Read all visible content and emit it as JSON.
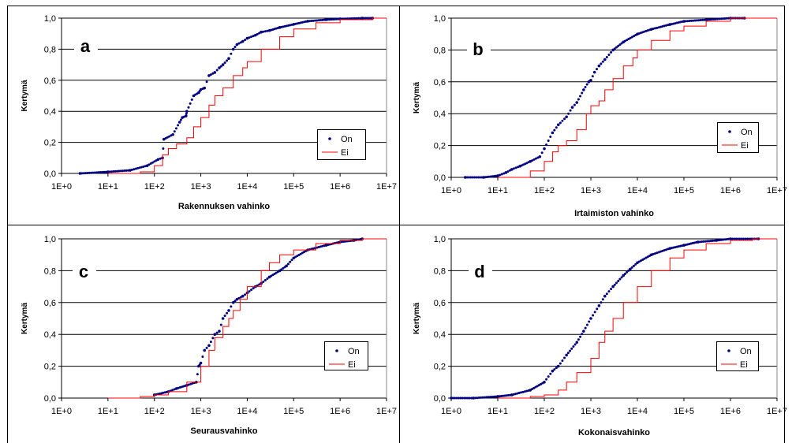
{
  "colors": {
    "on": "#000080",
    "ei": "#ff0000",
    "grid": "#000000"
  },
  "chart_data": [
    {
      "type": "line",
      "panel": "a",
      "xlabel": "Rakennuksen vahinko",
      "ylabel": "Kertymä",
      "xscale": "log",
      "xlim": [
        1,
        10000000
      ],
      "ylim": [
        0,
        1
      ],
      "xticks": [
        "1E+0",
        "1E+1",
        "1E+2",
        "1E+3",
        "1E+4",
        "1E+5",
        "1E+6",
        "1E+7"
      ],
      "yticks": [
        "0,0",
        "0,2",
        "0,4",
        "0,6",
        "0,8",
        "1,0"
      ],
      "grid": "horizontal",
      "legend": "right",
      "series": [
        {
          "name": "On",
          "style": "points",
          "x": [
            2.5,
            10,
            30,
            70,
            120,
            150,
            160,
            250,
            350,
            400,
            480,
            500,
            700,
            900,
            1000,
            1200,
            1500,
            2000,
            2500,
            3000,
            4000,
            5000,
            6000,
            8000,
            10000,
            15000,
            20000,
            30000,
            50000,
            100000,
            200000,
            500000,
            1000000,
            3000000,
            5000000
          ],
          "y": [
            0.0,
            0.01,
            0.02,
            0.05,
            0.09,
            0.1,
            0.22,
            0.25,
            0.33,
            0.36,
            0.37,
            0.4,
            0.5,
            0.52,
            0.54,
            0.55,
            0.63,
            0.65,
            0.68,
            0.7,
            0.74,
            0.8,
            0.83,
            0.85,
            0.87,
            0.89,
            0.91,
            0.92,
            0.94,
            0.96,
            0.98,
            0.99,
            0.995,
            1.0,
            1.0
          ]
        },
        {
          "name": "Ei",
          "style": "line",
          "x": [
            10,
            50,
            100,
            150,
            200,
            300,
            500,
            700,
            1000,
            1500,
            2000,
            3000,
            5000,
            8000,
            10000,
            20000,
            50000,
            100000,
            300000,
            1000000,
            5000000
          ],
          "y": [
            0.0,
            0.01,
            0.05,
            0.12,
            0.16,
            0.19,
            0.23,
            0.3,
            0.36,
            0.44,
            0.5,
            0.55,
            0.63,
            0.68,
            0.72,
            0.8,
            0.88,
            0.93,
            0.97,
            0.99,
            1.0
          ]
        }
      ]
    },
    {
      "type": "line",
      "panel": "b",
      "xlabel": "Irtaimiston vahinko",
      "ylabel": "Kertymä",
      "xscale": "log",
      "xlim": [
        1,
        10000000
      ],
      "ylim": [
        0,
        1
      ],
      "xticks": [
        "1E+0",
        "1E+1",
        "1E+2",
        "1E+3",
        "1E+4",
        "1E+5",
        "1E+6",
        "1E+7"
      ],
      "yticks": [
        "0,0",
        "0,2",
        "0,4",
        "0,6",
        "0,8",
        "1,0"
      ],
      "grid": "horizontal",
      "legend": "right",
      "series": [
        {
          "name": "On",
          "style": "points",
          "x": [
            2,
            5,
            10,
            15,
            20,
            30,
            50,
            80,
            100,
            150,
            200,
            300,
            400,
            500,
            700,
            900,
            1000,
            1200,
            1500,
            2000,
            3000,
            5000,
            10000,
            20000,
            50000,
            100000,
            300000,
            1000000,
            2000000
          ],
          "y": [
            0.0,
            0.0,
            0.01,
            0.03,
            0.05,
            0.07,
            0.1,
            0.13,
            0.18,
            0.28,
            0.33,
            0.38,
            0.44,
            0.47,
            0.55,
            0.6,
            0.61,
            0.66,
            0.7,
            0.74,
            0.8,
            0.85,
            0.9,
            0.93,
            0.96,
            0.98,
            0.99,
            1.0,
            1.0
          ]
        },
        {
          "name": "Ei",
          "style": "line",
          "x": [
            10,
            50,
            100,
            150,
            200,
            300,
            500,
            800,
            1000,
            1500,
            2000,
            3000,
            5000,
            8000,
            10000,
            20000,
            50000,
            100000,
            300000,
            1000000,
            3000000
          ],
          "y": [
            0.0,
            0.04,
            0.1,
            0.16,
            0.2,
            0.23,
            0.3,
            0.4,
            0.45,
            0.48,
            0.55,
            0.62,
            0.7,
            0.75,
            0.8,
            0.86,
            0.92,
            0.95,
            0.98,
            1.0,
            1.0
          ]
        }
      ]
    },
    {
      "type": "line",
      "panel": "c",
      "xlabel": "Seurausvahinko",
      "ylabel": "Kertymä",
      "xscale": "log",
      "xlim": [
        1,
        10000000
      ],
      "ylim": [
        0,
        1
      ],
      "xticks": [
        "1E+0",
        "1E+1",
        "1E+2",
        "1E+3",
        "1E+4",
        "1E+5",
        "1E+6",
        "1E+7"
      ],
      "yticks": [
        "0,0",
        "0,2",
        "0,4",
        "0,6",
        "0,8",
        "1,0"
      ],
      "grid": "horizontal",
      "legend": "right",
      "series": [
        {
          "name": "On",
          "style": "points",
          "x": [
            100,
            200,
            300,
            500,
            800,
            900,
            1000,
            1200,
            1500,
            2000,
            2500,
            3000,
            4000,
            5000,
            6000,
            8000,
            10000,
            15000,
            20000,
            30000,
            50000,
            70000,
            100000,
            200000,
            500000,
            1000000,
            2000000,
            3000000
          ],
          "y": [
            0.02,
            0.04,
            0.06,
            0.08,
            0.1,
            0.2,
            0.22,
            0.3,
            0.33,
            0.4,
            0.42,
            0.5,
            0.55,
            0.6,
            0.62,
            0.64,
            0.66,
            0.7,
            0.72,
            0.76,
            0.8,
            0.83,
            0.88,
            0.93,
            0.96,
            0.98,
            0.99,
            1.0
          ]
        },
        {
          "name": "Ei",
          "style": "line",
          "x": [
            10,
            50,
            100,
            200,
            500,
            1000,
            1500,
            2000,
            3000,
            4000,
            5000,
            7000,
            10000,
            20000,
            30000,
            50000,
            100000,
            300000,
            1000000,
            3000000
          ],
          "y": [
            0.0,
            0.01,
            0.02,
            0.04,
            0.1,
            0.2,
            0.3,
            0.38,
            0.45,
            0.5,
            0.55,
            0.62,
            0.7,
            0.8,
            0.85,
            0.9,
            0.93,
            0.97,
            0.99,
            1.0
          ]
        }
      ]
    },
    {
      "type": "line",
      "panel": "d",
      "xlabel": "Kokonaisvahinko",
      "ylabel": "Kertymä",
      "xscale": "log",
      "xlim": [
        1,
        10000000
      ],
      "ylim": [
        0,
        1
      ],
      "xticks": [
        "1E+0",
        "1E+1",
        "1E+2",
        "1E+3",
        "1E+4",
        "1E+5",
        "1E+6",
        "1E+7"
      ],
      "yticks": [
        "0,0",
        "0,2",
        "0,4",
        "0,6",
        "0,8",
        "1,0"
      ],
      "grid": "horizontal",
      "legend": "right",
      "series": [
        {
          "name": "On",
          "style": "points",
          "x": [
            1,
            3,
            10,
            20,
            50,
            100,
            150,
            200,
            300,
            500,
            700,
            1000,
            1500,
            2000,
            3000,
            5000,
            7000,
            10000,
            20000,
            50000,
            100000,
            200000,
            500000,
            1000000,
            4000000
          ],
          "y": [
            0.0,
            0.0,
            0.01,
            0.02,
            0.05,
            0.1,
            0.17,
            0.2,
            0.27,
            0.35,
            0.42,
            0.5,
            0.58,
            0.64,
            0.7,
            0.77,
            0.81,
            0.85,
            0.9,
            0.94,
            0.96,
            0.98,
            0.99,
            1.0,
            1.0
          ]
        },
        {
          "name": "Ei",
          "style": "line",
          "x": [
            10,
            50,
            100,
            200,
            300,
            500,
            1000,
            1500,
            2000,
            3000,
            5000,
            10000,
            20000,
            50000,
            100000,
            300000,
            1000000,
            3000000
          ],
          "y": [
            0.0,
            0.01,
            0.02,
            0.05,
            0.1,
            0.16,
            0.25,
            0.35,
            0.42,
            0.5,
            0.6,
            0.7,
            0.8,
            0.88,
            0.93,
            0.97,
            0.99,
            1.0
          ]
        }
      ]
    }
  ]
}
